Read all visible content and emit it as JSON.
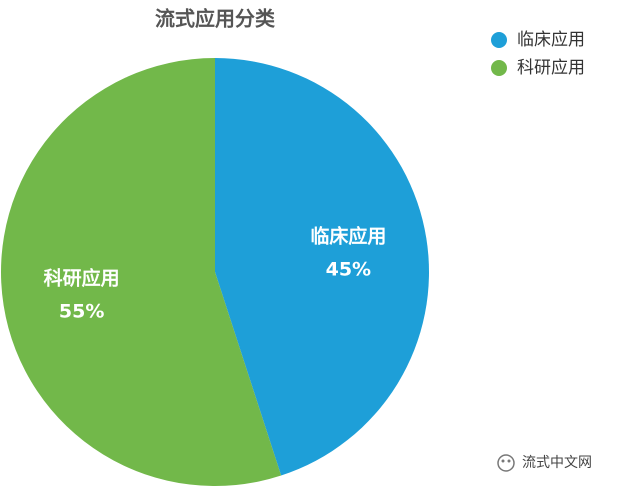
{
  "chart_data": {
    "type": "pie",
    "title": "流式应用分类",
    "categories": [
      "临床应用",
      "科研应用"
    ],
    "values": [
      45,
      55
    ],
    "value_labels": [
      "45%",
      "55%"
    ],
    "colors": [
      "#1e9fd8",
      "#72b84a"
    ]
  },
  "watermark": "流式中文网"
}
